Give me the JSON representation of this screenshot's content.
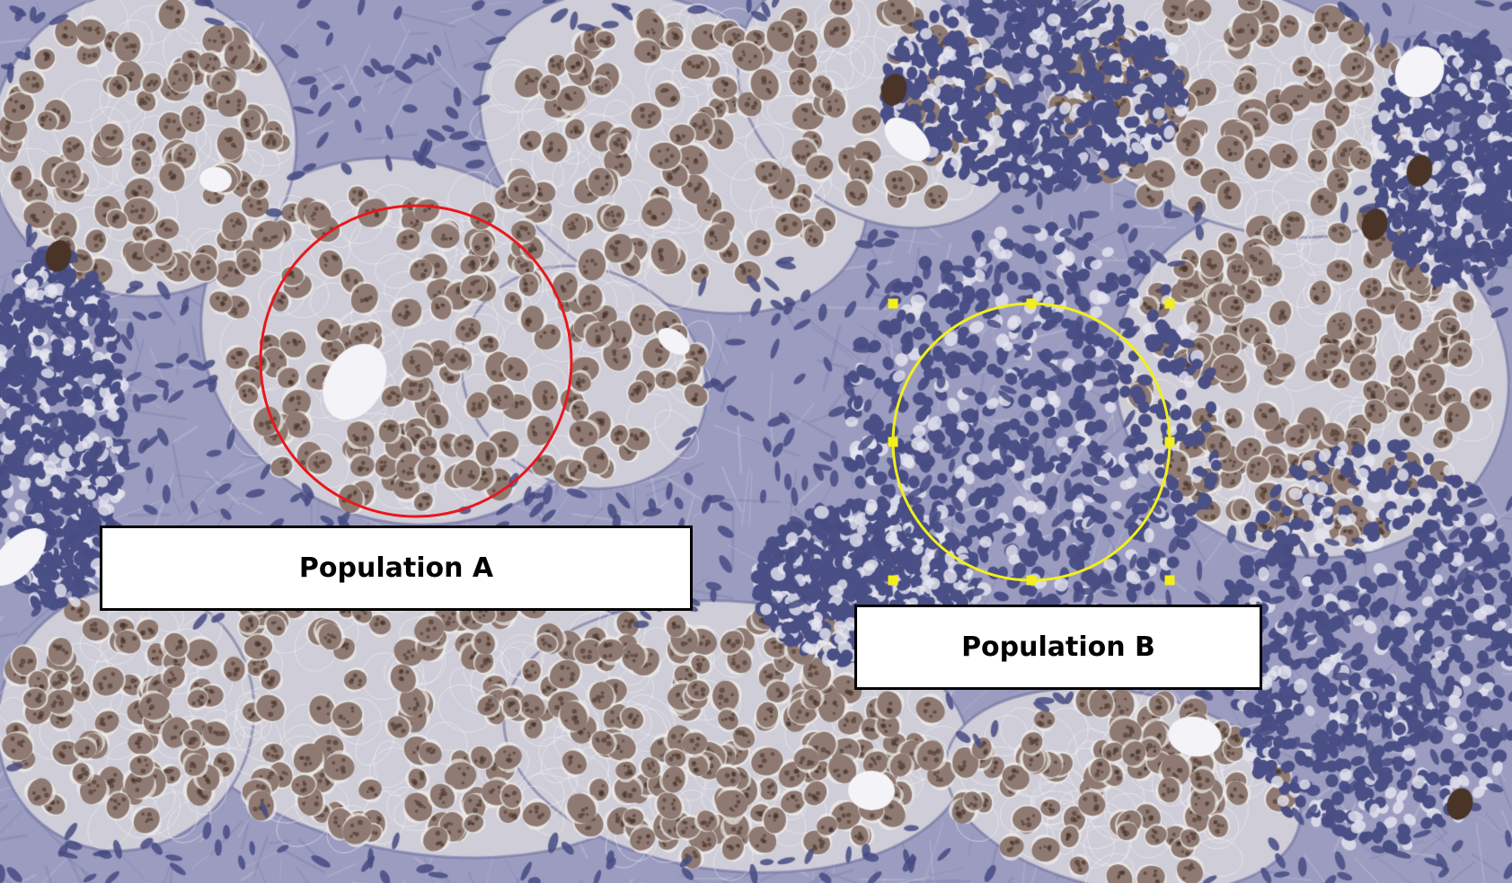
{
  "image": {
    "subject": "histology-micrograph"
  },
  "annotations": {
    "population_a": {
      "label": "Population A",
      "marker_shape": "circle",
      "marker_color": "#e8171b"
    },
    "population_b": {
      "label": "Population B",
      "marker_shape": "circle-with-selection-handles",
      "marker_color": "#f2ef1d"
    }
  },
  "colors": {
    "stroma": "#9b9cc0",
    "cytoplasm": "#cfcdd7",
    "tumor_nucleus": "#8e7a72",
    "lymphocyte_nucleus": "#4a4f86",
    "label_background": "#ffffff",
    "label_border": "#000000"
  }
}
